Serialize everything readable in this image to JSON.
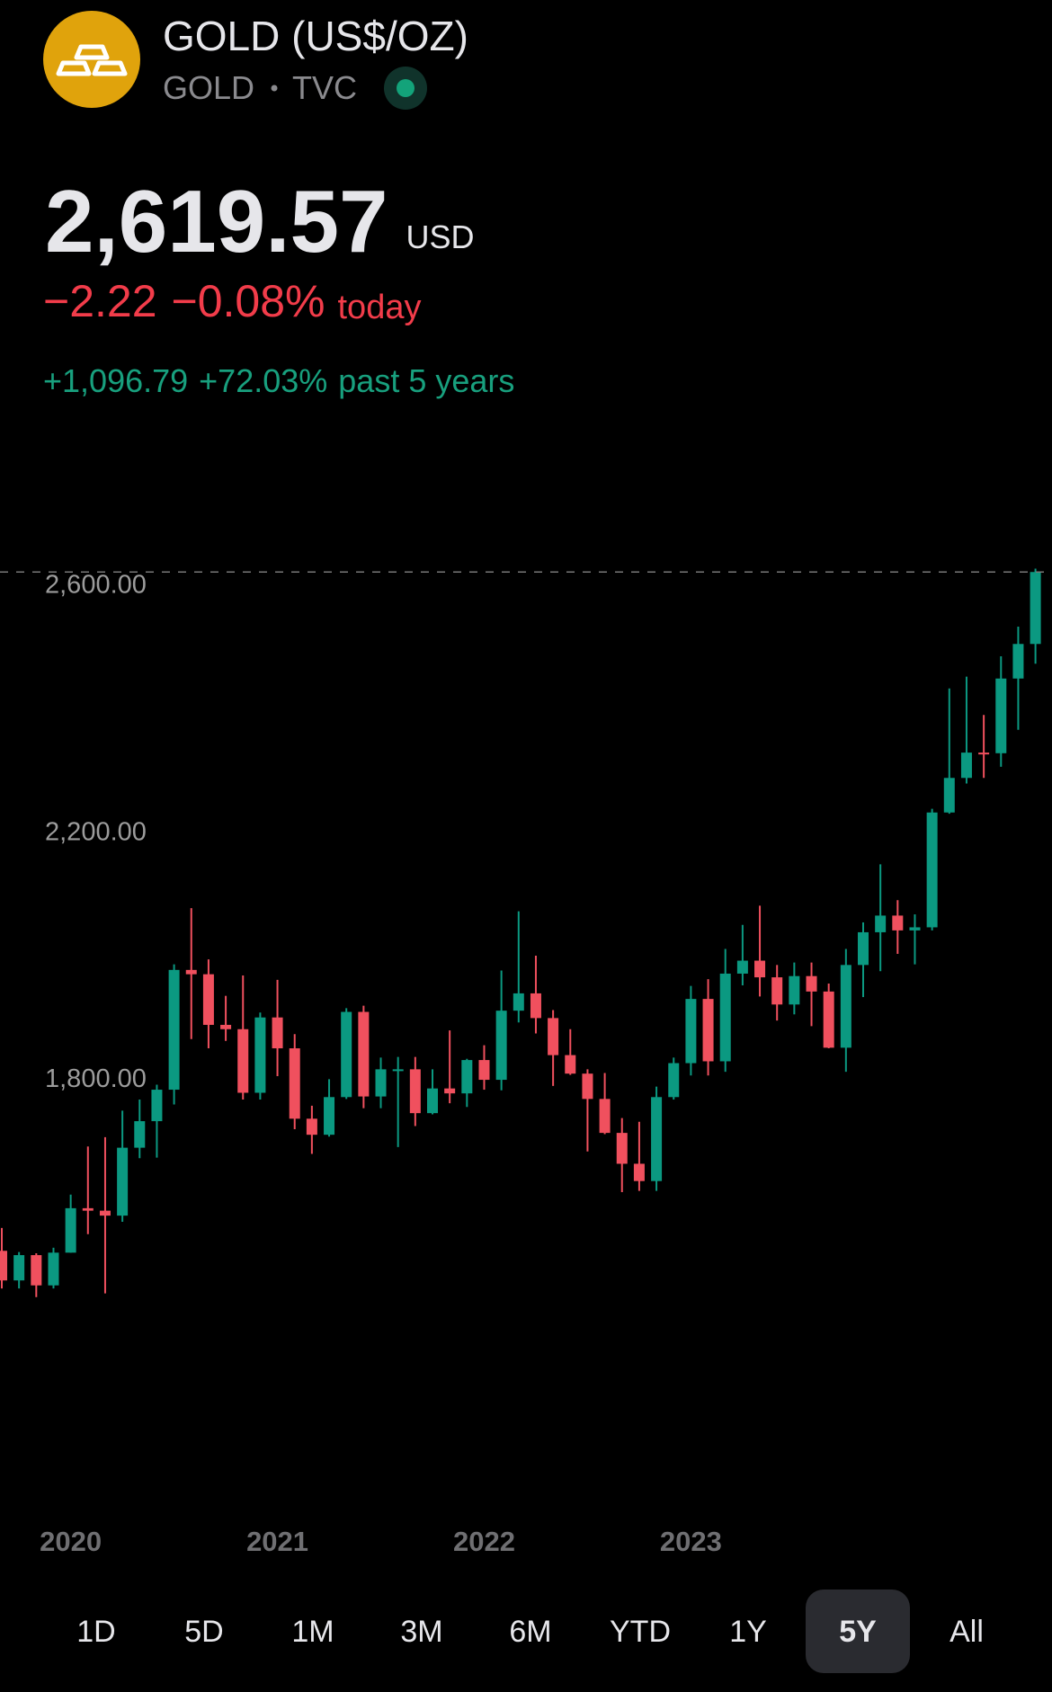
{
  "header": {
    "title": "GOLD (US$/OZ)",
    "symbol": "GOLD",
    "exchange": "TVC",
    "price": "2,619.57",
    "currency": "USD",
    "change_today": "−2.22",
    "change_pct_today": "−0.08%",
    "today_label": "today",
    "change_period": "+1,096.79",
    "change_pct_period": "+72.03%",
    "period_label": "past 5 years"
  },
  "chart_data": {
    "type": "candlestick",
    "categories": [
      null,
      null,
      null,
      null,
      "2020",
      null,
      null,
      null,
      null,
      null,
      null,
      null,
      null,
      null,
      null,
      null,
      "2021",
      null,
      null,
      null,
      null,
      null,
      null,
      null,
      null,
      null,
      null,
      null,
      "2022",
      null,
      null,
      null,
      null,
      null,
      null,
      null,
      null,
      null,
      null,
      null,
      "2023",
      null,
      null,
      null,
      null,
      null,
      null,
      null,
      null,
      null,
      null,
      null,
      null,
      null,
      null,
      null,
      null,
      null,
      null,
      null,
      null
    ],
    "open": [
      1520,
      1472,
      1513,
      1464,
      1517,
      1589,
      1585,
      1577,
      1687,
      1730,
      1781,
      1975,
      1968,
      1886,
      1879,
      1776,
      1898,
      1848,
      1734,
      1708,
      1769,
      1907,
      1770,
      1814,
      1814,
      1743,
      1783,
      1775,
      1829,
      1797,
      1909,
      1937,
      1897,
      1837,
      1807,
      1766,
      1711,
      1661,
      1633,
      1769,
      1824,
      1928,
      1827,
      1969,
      1990,
      1963,
      1919,
      1965,
      1940,
      1849,
      1983,
      2036,
      2063,
      2039,
      2044,
      2230,
      2286,
      2327,
      2326,
      2447,
      2503
    ],
    "high": [
      1557,
      1518,
      1516,
      1525,
      1611,
      1689,
      1704,
      1747,
      1765,
      1789,
      1984,
      2075,
      1992,
      1933,
      1966,
      1906,
      1959,
      1871,
      1755,
      1798,
      1913,
      1917,
      1833,
      1834,
      1834,
      1814,
      1877,
      1831,
      1853,
      1974,
      2070,
      1998,
      1910,
      1879,
      1814,
      1808,
      1735,
      1729,
      1786,
      1833,
      1949,
      1960,
      2009,
      2048,
      2079,
      1983,
      1987,
      1987,
      1953,
      2009,
      2052,
      2146,
      2088,
      2065,
      2236,
      2431,
      2450,
      2388,
      2483,
      2531,
      2625
    ],
    "low": [
      1459,
      1459,
      1445,
      1459,
      1517,
      1547,
      1451,
      1567,
      1670,
      1671,
      1757,
      1863,
      1848,
      1860,
      1765,
      1765,
      1803,
      1717,
      1677,
      1705,
      1766,
      1751,
      1751,
      1688,
      1722,
      1741,
      1759,
      1753,
      1781,
      1780,
      1890,
      1872,
      1787,
      1805,
      1681,
      1709,
      1615,
      1617,
      1617,
      1765,
      1804,
      1804,
      1810,
      1950,
      1932,
      1893,
      1903,
      1884,
      1848,
      1810,
      1931,
      1973,
      2001,
      1984,
      2039,
      2228,
      2277,
      2286,
      2304,
      2364,
      2471
    ],
    "close": [
      1472,
      1513,
      1464,
      1517,
      1589,
      1585,
      1577,
      1687,
      1730,
      1781,
      1975,
      1968,
      1886,
      1879,
      1776,
      1898,
      1848,
      1734,
      1708,
      1769,
      1907,
      1770,
      1814,
      1814,
      1743,
      1783,
      1775,
      1829,
      1797,
      1909,
      1937,
      1897,
      1837,
      1807,
      1766,
      1711,
      1661,
      1633,
      1769,
      1824,
      1928,
      1827,
      1969,
      1990,
      1963,
      1919,
      1965,
      1940,
      1849,
      1983,
      2036,
      2063,
      2039,
      2044,
      2230,
      2286,
      2327,
      2326,
      2447,
      2503,
      2619.57
    ],
    "up_color": "#0b9981",
    "down_color": "#f0505e",
    "ylim": [
      1200,
      2700
    ],
    "yticks": [
      {
        "value": 1800,
        "label": "1,800.00"
      },
      {
        "value": 2200,
        "label": "2,200.00"
      },
      {
        "value": 2600,
        "label": "2,600.00"
      }
    ],
    "grid": false,
    "last_price_line": true
  },
  "ranges": [
    "1D",
    "5D",
    "1M",
    "3M",
    "6M",
    "YTD",
    "1Y",
    "5Y",
    "All"
  ],
  "selected_range": 7
}
